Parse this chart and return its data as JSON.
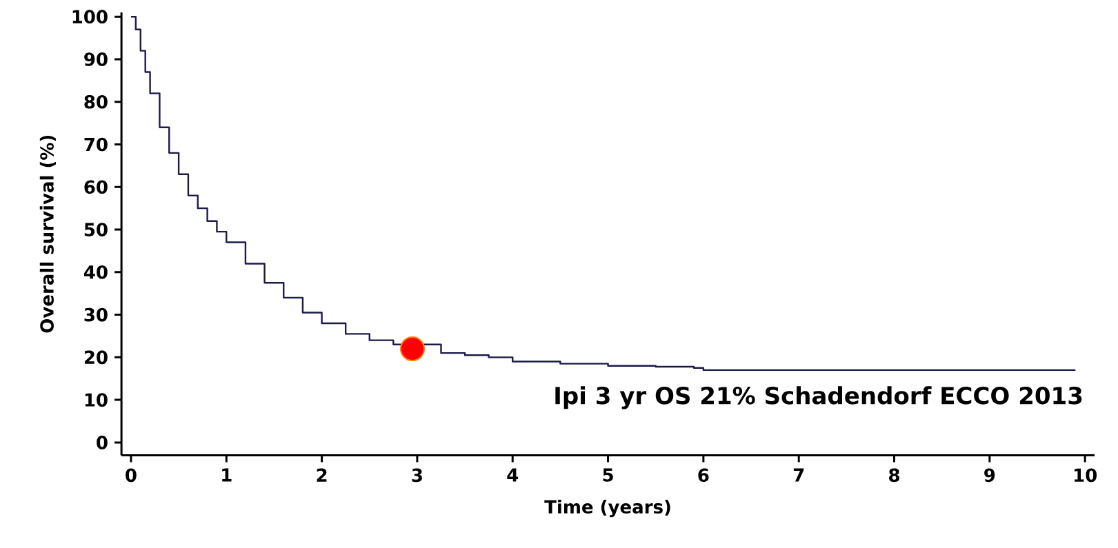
{
  "chart_data": {
    "type": "step",
    "xlabel": "Time (years)",
    "ylabel": "Overall survival (%)",
    "xlim": [
      -0.1,
      10.1
    ],
    "ylim": [
      -3,
      101
    ],
    "xticks": [
      0,
      1,
      2,
      3,
      4,
      5,
      6,
      7,
      8,
      9,
      10
    ],
    "yticks": [
      0,
      10,
      20,
      30,
      40,
      50,
      60,
      70,
      80,
      90,
      100
    ],
    "grid": false,
    "series": [
      {
        "color": "#1c1a4a",
        "x": [
          0,
          0.05,
          0.1,
          0.15,
          0.2,
          0.3,
          0.4,
          0.5,
          0.6,
          0.7,
          0.8,
          0.9,
          1.0,
          1.2,
          1.4,
          1.6,
          1.8,
          2.0,
          2.25,
          2.5,
          2.75,
          3.25,
          3.5,
          3.75,
          4.0,
          4.5,
          5.0,
          5.5,
          5.9,
          6.0,
          9.9
        ],
        "values": [
          100,
          97,
          92,
          87,
          82,
          74,
          68,
          63,
          58,
          55,
          52,
          49.5,
          47,
          42,
          37.5,
          34,
          30.5,
          28,
          25.5,
          24,
          23,
          21,
          20.5,
          20,
          19,
          18.5,
          18,
          17.8,
          17.5,
          17,
          17
        ]
      },
      {
        "type": "scatter",
        "marker": "circle",
        "color": "#ff0000",
        "x": [
          2.95
        ],
        "values": [
          22
        ]
      }
    ],
    "annotations": [
      "Ipi 3 yr OS 21% Schadendorf ECCO 2013"
    ]
  }
}
